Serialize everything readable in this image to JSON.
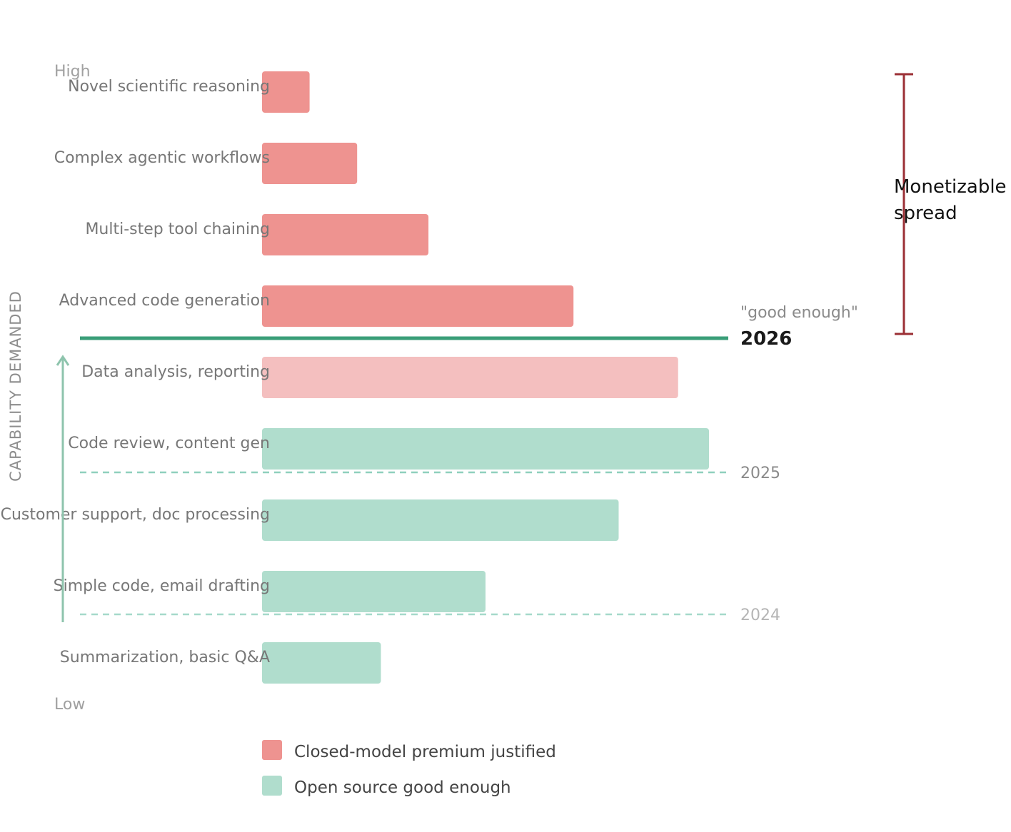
{
  "chart_data": {
    "type": "bar",
    "orientation": "horizontal",
    "y_axis_title": "CAPABILITY DEMANDED",
    "y_axis_high": "High",
    "y_axis_low": "Low",
    "categories": [
      "Novel scientific reasoning",
      "Complex agentic workflows",
      "Multi-step tool chaining",
      "Advanced code generation",
      "Data analysis, reporting",
      "Code review, content gen",
      "Customer support, doc processing",
      "Simple code, email drafting",
      "Summarization, basic Q&A"
    ],
    "values": [
      10,
      20,
      35,
      65.5,
      87.5,
      94,
      75,
      47,
      25
    ],
    "bar_class": [
      "closed",
      "closed",
      "closed",
      "closed",
      "closed-light",
      "open",
      "open",
      "open",
      "open"
    ],
    "xlim": [
      0,
      100
    ],
    "thresholds": [
      {
        "label": "2026",
        "note": "\"good enough\"",
        "between_index": 3.5,
        "style": "solid"
      },
      {
        "label": "2025",
        "between_index": 5.33,
        "style": "dashed"
      },
      {
        "label": "2024",
        "between_index": 7.33,
        "style": "dashed-faint"
      }
    ],
    "bracket_label_lines": [
      "Monetizable",
      "spread"
    ],
    "legend": [
      {
        "label": "Closed-model premium justified",
        "color": "#ee9390"
      },
      {
        "label": "Open source good enough",
        "color": "#b0ddcd"
      }
    ],
    "colors": {
      "closed": "#ee9390",
      "closed-light": "#f4bfbf",
      "open": "#b0ddcd",
      "threshold_main": "#3a9e78",
      "threshold_dashed": "#8fd0bd",
      "bracket": "#9b2f35",
      "arrow": "#8ec4ad"
    }
  }
}
